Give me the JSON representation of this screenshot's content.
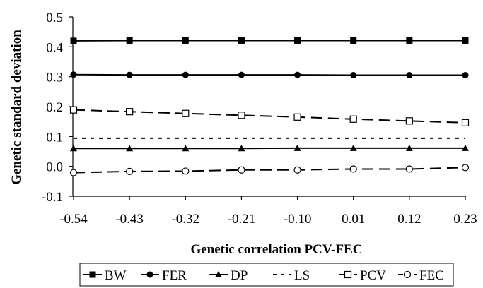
{
  "chart_data": {
    "type": "line",
    "xlabel": "Genetic correlation PCV-FEC",
    "ylabel": "Genetic standard deviation",
    "x": [
      "-0.54",
      "-0.43",
      "-0.32",
      "-0.21",
      "-0.10",
      "0.01",
      "0.12",
      "0.23"
    ],
    "yticks": [
      "-0.1",
      "0.0",
      "0.1",
      "0.2",
      "0.3",
      "0.4",
      "0.5"
    ],
    "ylim": [
      -0.1,
      0.5
    ],
    "grid": false,
    "legend_position": "bottom",
    "series": [
      {
        "name": "BW",
        "marker": "filled-square",
        "dash": "solid",
        "values": [
          0.42,
          0.421,
          0.421,
          0.421,
          0.421,
          0.421,
          0.421,
          0.421
        ]
      },
      {
        "name": "FER",
        "marker": "filled-circle",
        "dash": "solid",
        "values": [
          0.307,
          0.306,
          0.306,
          0.306,
          0.306,
          0.305,
          0.305,
          0.305
        ]
      },
      {
        "name": "DP",
        "marker": "filled-triangle",
        "dash": "solid",
        "values": [
          0.06,
          0.06,
          0.06,
          0.06,
          0.061,
          0.061,
          0.061,
          0.061
        ]
      },
      {
        "name": "LS",
        "marker": "none",
        "dash": "dotted",
        "values": [
          0.094,
          0.094,
          0.094,
          0.094,
          0.094,
          0.094,
          0.094,
          0.094
        ]
      },
      {
        "name": "PCV",
        "marker": "open-square",
        "dash": "dashed",
        "values": [
          0.189,
          0.183,
          0.177,
          0.171,
          0.165,
          0.158,
          0.152,
          0.146
        ]
      },
      {
        "name": "FEC",
        "marker": "open-circle",
        "dash": "dashed",
        "values": [
          -0.021,
          -0.017,
          -0.016,
          -0.012,
          -0.012,
          -0.009,
          -0.009,
          -0.004
        ]
      }
    ]
  }
}
